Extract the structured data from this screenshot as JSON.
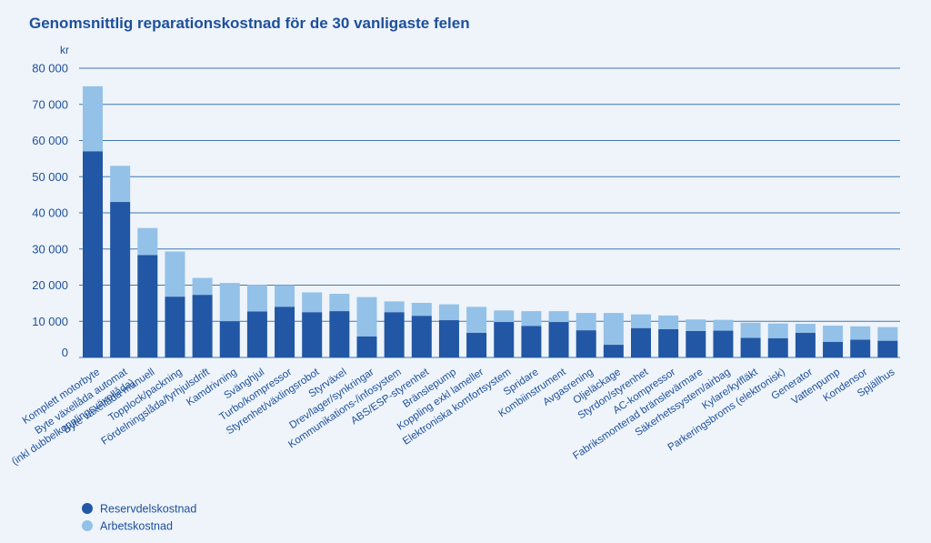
{
  "colors": {
    "background": "#eef4fa",
    "text": "#1e4f9c",
    "gridline": "#3f78b3",
    "series_parts": "#2157a4",
    "series_labor": "#93c1e8"
  },
  "chart_data": {
    "type": "bar",
    "stacked": true,
    "title": "Genomsnittlig reparationskostnad för de 30 vanligaste felen",
    "unit_label": "kr",
    "ylim": [
      0,
      80000
    ],
    "yticks": [
      0,
      10000,
      20000,
      30000,
      40000,
      50000,
      60000,
      70000,
      80000
    ],
    "ytick_labels": [
      "0",
      "10 000",
      "20 000",
      "30 000",
      "40 000",
      "50 000",
      "60 000",
      "70 000",
      "80 000"
    ],
    "grid": true,
    "legend_position": "bottom-left",
    "categories": [
      [
        "Komplett motorbyte"
      ],
      [
        "Byte växellåda automat",
        "(inkl dubbelkopplingsväxellåda)"
      ],
      [
        "Byte växellåda manuell"
      ],
      [
        "Topplock/packning"
      ],
      [
        "Fördelningslåda/fyrhjulsdrift"
      ],
      [
        "Kamdrivning"
      ],
      [
        "Svänghjul"
      ],
      [
        "Turbo/kompressor"
      ],
      [
        "Styrenhet/växlingsrobot"
      ],
      [
        "Styrväxel"
      ],
      [
        "Drev/lager/synkringar"
      ],
      [
        "Kommunikations-/infosystem"
      ],
      [
        "ABS/ESP-styrenhet"
      ],
      [
        "Bränslepump"
      ],
      [
        "Koppling exkl lameller"
      ],
      [
        "Elektroniska komfortsystem"
      ],
      [
        "Spridare"
      ],
      [
        "Kombiinstrument"
      ],
      [
        "Avgasrening"
      ],
      [
        "Oljeläckage"
      ],
      [
        "Styrdon/styrenhet"
      ],
      [
        "AC-kompressor"
      ],
      [
        "Fabriksmonterad bränslevärmare"
      ],
      [
        "Säkerhetssystem/airbag"
      ],
      [
        "Kylare/kylfläkt"
      ],
      [
        "Parkeringsbroms (elektronisk)"
      ],
      [
        "Generator"
      ],
      [
        "Vattenpump"
      ],
      [
        "Kondensor"
      ],
      [
        "Spjällhus"
      ]
    ],
    "series": [
      {
        "name": "Reservdelskostnad",
        "values": [
          57000,
          43000,
          28300,
          16800,
          17300,
          10000,
          12700,
          14000,
          12500,
          12800,
          5800,
          12500,
          11500,
          10300,
          6800,
          9800,
          8700,
          9800,
          7500,
          3500,
          8100,
          7800,
          7300,
          7400,
          5400,
          5300,
          6800,
          4300,
          4900,
          4600
        ]
      },
      {
        "name": "Arbetskostnad",
        "values": [
          18000,
          10000,
          7500,
          12500,
          4700,
          10600,
          7400,
          6000,
          5500,
          4800,
          10900,
          3000,
          3600,
          4400,
          7200,
          3200,
          4100,
          3000,
          4800,
          8800,
          3800,
          3800,
          3200,
          3000,
          4200,
          4100,
          2500,
          4500,
          3700,
          3800
        ]
      }
    ]
  }
}
